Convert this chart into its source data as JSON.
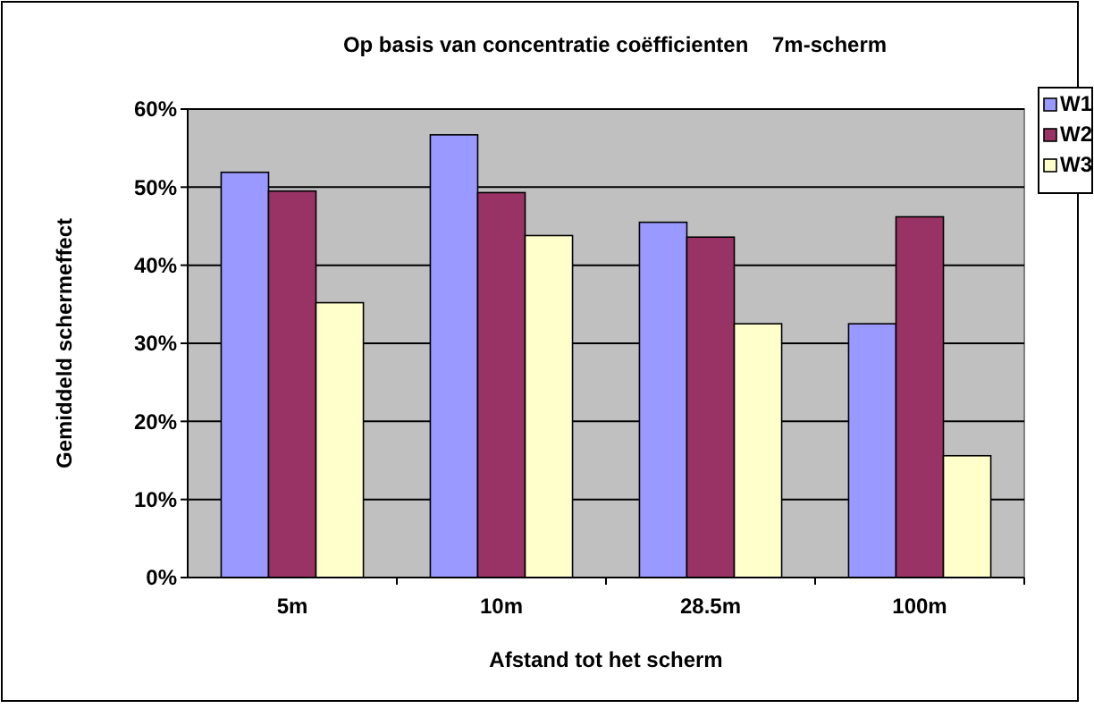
{
  "chart_data": {
    "type": "bar",
    "title": "Op basis van concentratie coëfficienten    7m-scherm",
    "xlabel": "Afstand tot het scherm",
    "ylabel": "Gemiddeld schermeffect",
    "categories": [
      "5m",
      "10m",
      "28.5m",
      "100m"
    ],
    "series": [
      {
        "name": "W1",
        "color": "#9999ff",
        "values": [
          51.9,
          56.7,
          45.5,
          32.5
        ]
      },
      {
        "name": "W2",
        "color": "#993366",
        "values": [
          49.5,
          49.3,
          43.6,
          46.2
        ]
      },
      {
        "name": "W3",
        "color": "#ffffcc",
        "values": [
          35.2,
          43.8,
          32.5,
          15.6
        ]
      }
    ],
    "ylim": [
      0,
      60
    ],
    "yticks": [
      {
        "value": 0,
        "label": "0%"
      },
      {
        "value": 10,
        "label": "10%"
      },
      {
        "value": 20,
        "label": "20%"
      },
      {
        "value": 30,
        "label": "30%"
      },
      {
        "value": 40,
        "label": "40%"
      },
      {
        "value": 50,
        "label": "50%"
      },
      {
        "value": 60,
        "label": "60%"
      }
    ],
    "grid": "y",
    "legend": "top right"
  }
}
